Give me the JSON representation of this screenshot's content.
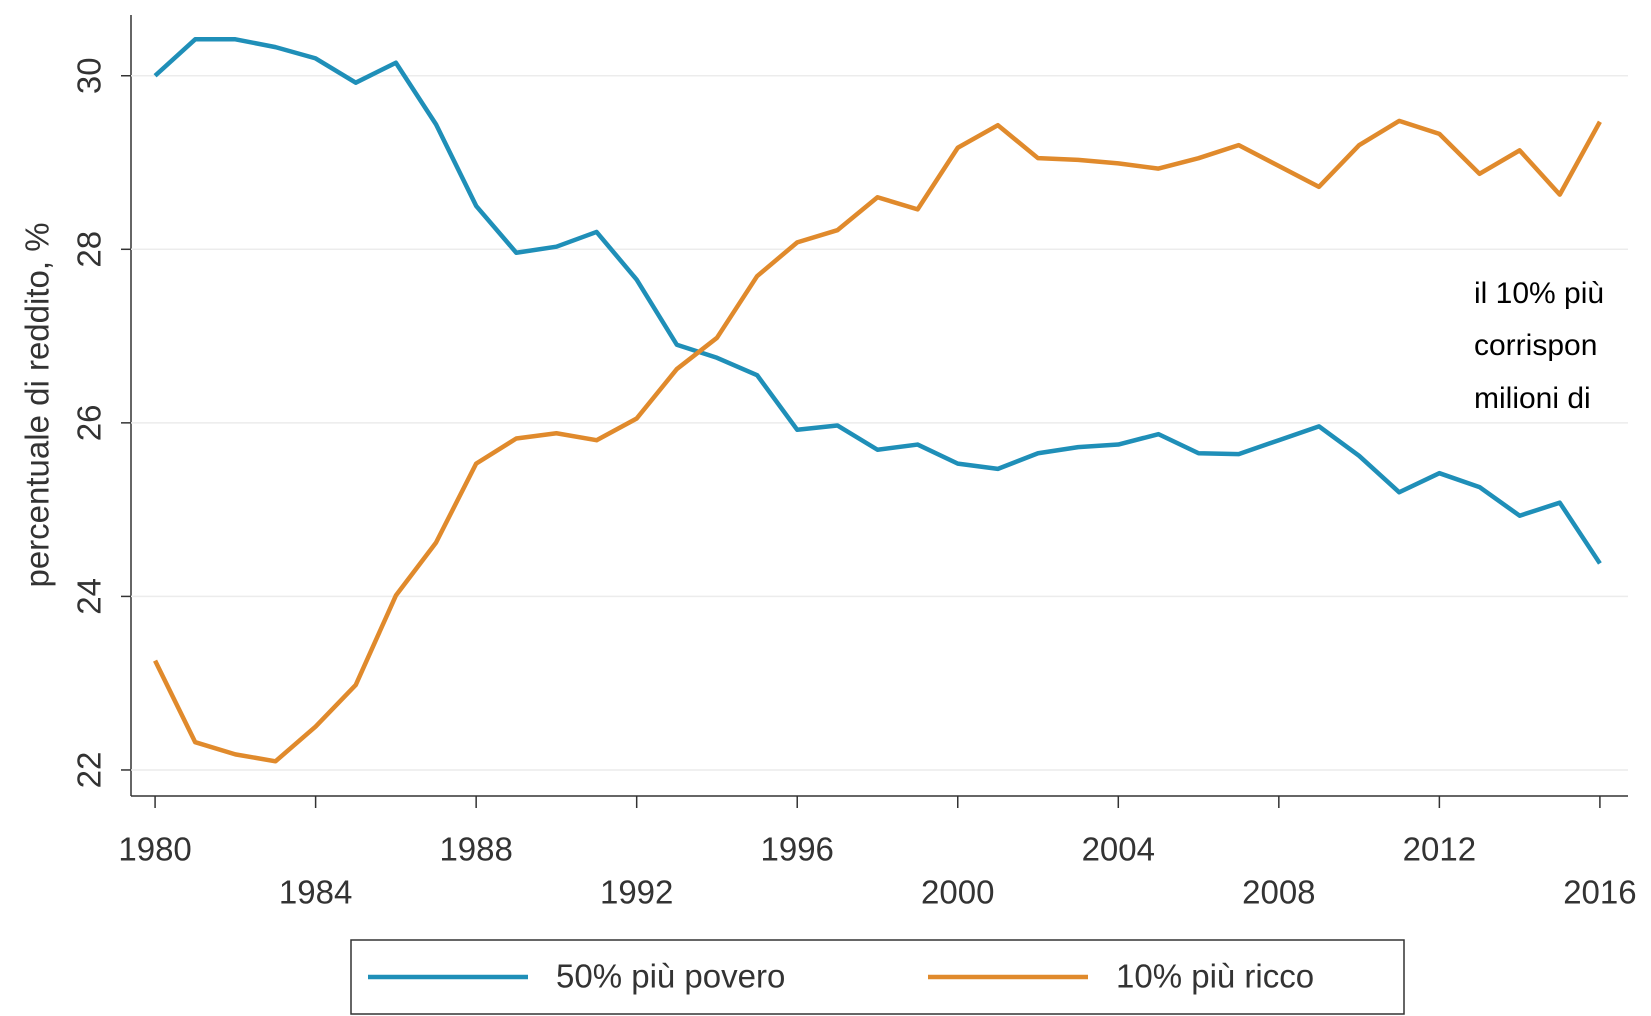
{
  "chart_data": {
    "type": "line",
    "y_label": "percentuale di reddito, %",
    "annotation": [
      "il 10% più",
      "corrispon",
      "milioni di"
    ],
    "x": [
      1980,
      1981,
      1982,
      1983,
      1984,
      1985,
      1986,
      1987,
      1988,
      1989,
      1990,
      1991,
      1992,
      1993,
      1994,
      1995,
      1996,
      1997,
      1998,
      1999,
      2000,
      2001,
      2002,
      2003,
      2004,
      2005,
      2006,
      2007,
      2008,
      2009,
      2010,
      2011,
      2012,
      2013,
      2014,
      2015,
      2016
    ],
    "series": [
      {
        "name": "50% più povero",
        "color": "#1f8fb8",
        "values": [
          30.0,
          30.42,
          30.42,
          30.33,
          30.2,
          29.92,
          30.15,
          29.44,
          28.5,
          27.96,
          28.03,
          28.2,
          27.65,
          26.9,
          26.75,
          26.55,
          25.92,
          25.97,
          25.69,
          25.75,
          25.53,
          25.47,
          25.65,
          25.72,
          25.75,
          25.87,
          25.65,
          25.64,
          25.8,
          25.96,
          25.62,
          25.2,
          25.42,
          25.26,
          24.93,
          25.08,
          24.38
        ]
      },
      {
        "name": "10% più ricco",
        "color": "#e08a2c",
        "values": [
          23.26,
          22.32,
          22.18,
          22.1,
          22.5,
          22.98,
          24.01,
          24.62,
          25.53,
          25.82,
          25.88,
          25.8,
          26.05,
          26.62,
          26.98,
          27.69,
          28.08,
          28.22,
          28.6,
          28.46,
          29.17,
          29.43,
          29.05,
          29.03,
          28.99,
          28.93,
          29.05,
          29.2,
          28.96,
          28.72,
          29.2,
          29.48,
          29.33,
          28.87,
          29.14,
          28.63,
          29.47
        ]
      }
    ],
    "xlim": [
      1979.4,
      2016.7
    ],
    "xticks": [
      1980,
      1984,
      1988,
      1992,
      1996,
      2000,
      2004,
      2008,
      2012,
      2016
    ],
    "ylim": [
      21.7,
      30.7
    ],
    "yticks": [
      22,
      24,
      26,
      28,
      30
    ],
    "grid": true
  }
}
